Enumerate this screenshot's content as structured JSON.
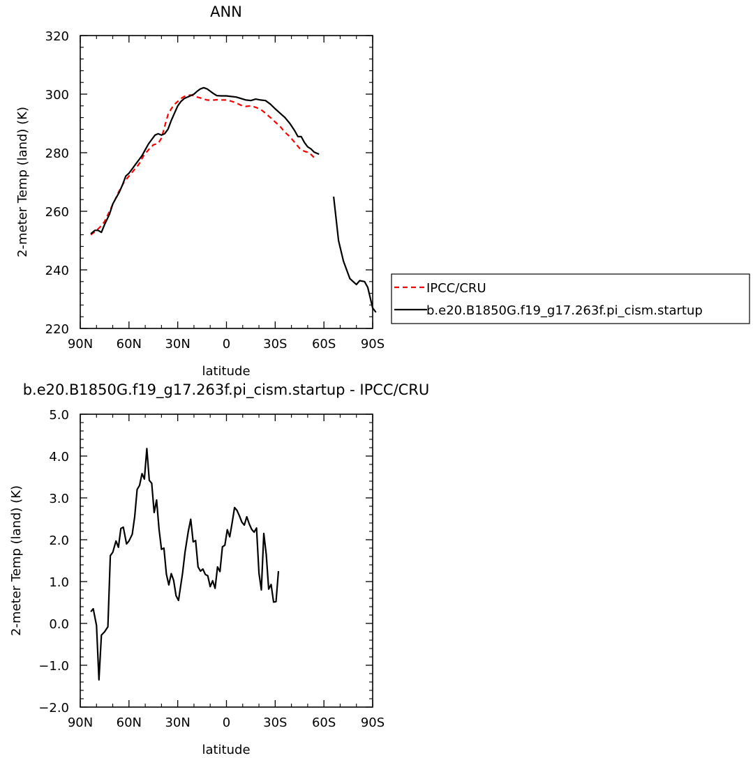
{
  "chart_data": [
    {
      "type": "line",
      "title": "ANN",
      "xlabel": "latitude",
      "ylabel": "2-meter Temp (land) (K)",
      "xlim": [
        90,
        -90
      ],
      "ylim": [
        220,
        320
      ],
      "x_ticks": [
        90,
        60,
        30,
        0,
        -30,
        -60,
        -90
      ],
      "x_tick_labels": [
        "90N",
        "60N",
        "30N",
        "0",
        "30S",
        "60S",
        "90S"
      ],
      "y_ticks": [
        220,
        240,
        260,
        280,
        300,
        320
      ],
      "y_tick_labels": [
        "220",
        "240",
        "260",
        "280",
        "300",
        "320"
      ],
      "grid": false,
      "legend_position": "right",
      "series": [
        {
          "name": "IPCC/CRU",
          "style": "dashed",
          "color": "#ff0000",
          "segments": [
            [
              [
                83.5,
                252.0
              ],
              [
                81,
                253
              ],
              [
                78,
                254.5
              ],
              [
                75,
                256.5
              ],
              [
                72,
                260
              ],
              [
                69,
                263.5
              ],
              [
                66,
                267
              ],
              [
                63,
                270
              ],
              [
                60,
                272
              ],
              [
                57,
                274
              ],
              [
                54,
                276
              ],
              [
                51,
                279
              ],
              [
                48,
                281
              ],
              [
                45,
                282.7
              ],
              [
                42,
                283.2
              ],
              [
                40,
                285
              ],
              [
                38,
                289
              ],
              [
                36,
                293
              ],
              [
                34,
                295
              ],
              [
                32,
                296.5
              ],
              [
                30,
                297.5
              ],
              [
                28,
                298.5
              ],
              [
                26,
                299.2
              ],
              [
                24,
                299.6
              ],
              [
                22,
                299.7
              ],
              [
                20,
                299.5
              ],
              [
                18,
                299.0
              ],
              [
                15,
                298.5
              ],
              [
                12,
                298.0
              ],
              [
                9,
                297.9
              ],
              [
                6,
                298.1
              ],
              [
                3,
                298.0
              ],
              [
                0,
                298.0
              ],
              [
                -3,
                297.6
              ],
              [
                -6,
                297.0
              ],
              [
                -9,
                296.2
              ],
              [
                -12,
                295.8
              ],
              [
                -15,
                296.0
              ],
              [
                -18,
                295.5
              ],
              [
                -21,
                294.8
              ],
              [
                -24,
                293.5
              ],
              [
                -27,
                292.0
              ],
              [
                -30,
                290.5
              ],
              [
                -33,
                289.0
              ],
              [
                -36,
                287.0
              ],
              [
                -39,
                285.5
              ],
              [
                -42,
                283.5
              ],
              [
                -45,
                281.5
              ],
              [
                -48,
                280.5
              ],
              [
                -51,
                280.0
              ],
              [
                -54,
                278.3
              ]
            ]
          ]
        },
        {
          "name": "b.e20.B1850G.f19_g17.263f.pi_cism.startup",
          "style": "solid",
          "color": "#000000",
          "segments": [
            [
              [
                83.5,
                252.3
              ],
              [
                81,
                253.5
              ],
              [
                79,
                253.5
              ],
              [
                77,
                252.8
              ],
              [
                75,
                255.5
              ],
              [
                72,
                259
              ],
              [
                70,
                262.5
              ],
              [
                68,
                264.5
              ],
              [
                66,
                266.5
              ],
              [
                64,
                269
              ],
              [
                62,
                272
              ],
              [
                60,
                273
              ],
              [
                58,
                274.5
              ],
              [
                56,
                276
              ],
              [
                54,
                277.5
              ],
              [
                52,
                279
              ],
              [
                50,
                281
              ],
              [
                48,
                283
              ],
              [
                46,
                284.5
              ],
              [
                44,
                286
              ],
              [
                42,
                286.5
              ],
              [
                40,
                286
              ],
              [
                38,
                286.5
              ],
              [
                36,
                288
              ],
              [
                34,
                291
              ],
              [
                32,
                293.5
              ],
              [
                30,
                296
              ],
              [
                28,
                297.5
              ],
              [
                26,
                298.5
              ],
              [
                24,
                299
              ],
              [
                22,
                299.5
              ],
              [
                20,
                300
              ],
              [
                18,
                301
              ],
              [
                16,
                301.8
              ],
              [
                14,
                302.2
              ],
              [
                12,
                301.8
              ],
              [
                10,
                301
              ],
              [
                8,
                300.2
              ],
              [
                6,
                299.5
              ],
              [
                3,
                299.4
              ],
              [
                0,
                299.4
              ],
              [
                -3,
                299.2
              ],
              [
                -6,
                299.0
              ],
              [
                -9,
                298.5
              ],
              [
                -12,
                298.0
              ],
              [
                -15,
                297.8
              ],
              [
                -18,
                298.3
              ],
              [
                -21,
                298.0
              ],
              [
                -24,
                297.8
              ],
              [
                -27,
                296.6
              ],
              [
                -30,
                295.0
              ],
              [
                -33,
                293.5
              ],
              [
                -36,
                292.0
              ],
              [
                -39,
                290.0
              ],
              [
                -42,
                287.5
              ],
              [
                -44,
                285.5
              ],
              [
                -46,
                285.5
              ],
              [
                -48,
                283.5
              ],
              [
                -50,
                282.0
              ],
              [
                -52,
                281.3
              ],
              [
                -54,
                280.2
              ],
              [
                -57,
                279.5
              ]
            ],
            [
              [
                -66,
                265
              ],
              [
                -69,
                250
              ],
              [
                -72,
                243
              ],
              [
                -76,
                237
              ],
              [
                -80,
                235
              ],
              [
                -82,
                236.3
              ],
              [
                -85,
                236.0
              ],
              [
                -87,
                234.0
              ],
              [
                -90,
                227
              ],
              [
                -92,
                225.5
              ]
            ]
          ]
        }
      ]
    },
    {
      "type": "line",
      "title": "b.e20.B1850G.f19_g17.263f.pi_cism.startup - IPCC/CRU",
      "xlabel": "latitude",
      "ylabel": "2-meter Temp (land) (K)",
      "xlim": [
        90,
        -90
      ],
      "ylim": [
        -2.0,
        5.0
      ],
      "x_ticks": [
        90,
        60,
        30,
        0,
        -30,
        -60,
        -90
      ],
      "x_tick_labels": [
        "90N",
        "60N",
        "30N",
        "0",
        "30S",
        "60S",
        "90S"
      ],
      "y_ticks": [
        -2.0,
        -1.0,
        0.0,
        1.0,
        2.0,
        3.0,
        4.0,
        5.0
      ],
      "y_tick_labels": [
        "−2.0",
        "−1.0",
        "0.0",
        "1.0",
        "2.0",
        "3.0",
        "4.0",
        "5.0"
      ],
      "grid": false,
      "series": [
        {
          "style": "solid",
          "color": "#000000",
          "segments": [
            [
              [
                83.5,
                0.28
              ],
              [
                82,
                0.35
              ],
              [
                80,
                -0.05
              ],
              [
                78.5,
                -1.35
              ],
              [
                77,
                -0.28
              ],
              [
                75,
                -0.2
              ],
              [
                73,
                -0.08
              ],
              [
                71.5,
                1.62
              ],
              [
                70,
                1.7
              ],
              [
                68,
                1.97
              ],
              [
                66.5,
                1.82
              ],
              [
                65,
                2.27
              ],
              [
                63.5,
                2.3
              ],
              [
                61.5,
                1.9
              ],
              [
                60,
                1.97
              ],
              [
                58,
                2.13
              ],
              [
                56.5,
                2.55
              ],
              [
                55,
                3.2
              ],
              [
                53.5,
                3.3
              ],
              [
                52,
                3.58
              ],
              [
                50.5,
                3.45
              ],
              [
                49,
                4.18
              ],
              [
                47.5,
                3.42
              ],
              [
                46,
                3.35
              ],
              [
                44.5,
                2.65
              ],
              [
                43,
                2.95
              ],
              [
                41.5,
                2.25
              ],
              [
                40,
                1.77
              ],
              [
                38.5,
                1.8
              ],
              [
                37,
                1.18
              ],
              [
                35.5,
                0.92
              ],
              [
                34,
                1.19
              ],
              [
                32.5,
                1.03
              ],
              [
                31,
                0.66
              ],
              [
                29.5,
                0.55
              ],
              [
                27,
                1.2
              ],
              [
                25.5,
                1.7
              ],
              [
                23.5,
                2.2
              ],
              [
                22,
                2.49
              ],
              [
                20.5,
                1.95
              ],
              [
                19,
                1.98
              ],
              [
                17.5,
                1.35
              ],
              [
                16,
                1.25
              ],
              [
                14.5,
                1.3
              ],
              [
                13,
                1.17
              ],
              [
                11.5,
                1.14
              ],
              [
                10,
                0.88
              ],
              [
                8.5,
                1.02
              ],
              [
                7,
                0.84
              ],
              [
                5.5,
                1.35
              ],
              [
                4,
                1.24
              ],
              [
                2.5,
                1.83
              ],
              [
                1,
                1.87
              ],
              [
                -0.5,
                2.24
              ],
              [
                -2,
                2.07
              ],
              [
                -3.5,
                2.4
              ],
              [
                -5,
                2.77
              ],
              [
                -6.5,
                2.7
              ],
              [
                -8,
                2.57
              ],
              [
                -9.5,
                2.42
              ],
              [
                -11,
                2.35
              ],
              [
                -12.5,
                2.55
              ],
              [
                -14,
                2.38
              ],
              [
                -15.5,
                2.25
              ],
              [
                -17,
                2.18
              ],
              [
                -18.5,
                2.28
              ],
              [
                -20,
                1.2
              ],
              [
                -21.5,
                0.8
              ],
              [
                -23,
                2.15
              ],
              [
                -24.5,
                1.65
              ],
              [
                -26,
                0.82
              ],
              [
                -27.5,
                0.93
              ],
              [
                -29,
                0.51
              ],
              [
                -30.5,
                0.52
              ],
              [
                -32,
                1.25
              ]
            ]
          ]
        }
      ]
    }
  ]
}
